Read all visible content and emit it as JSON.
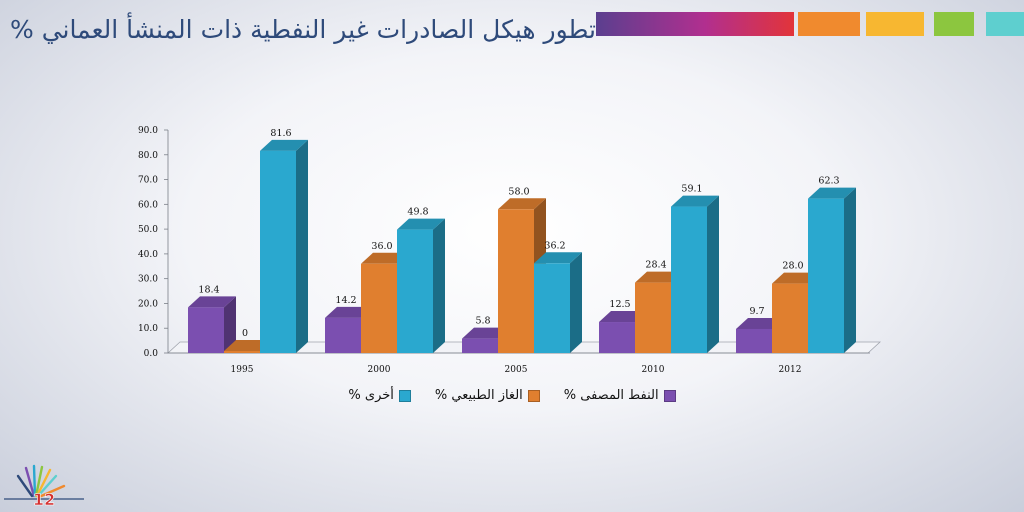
{
  "title": "تطور هيكل الصادرات غير النفطية ذات المنشأ العماني %",
  "header_colors": [
    "#5b3f8f",
    "#e2343a",
    "#f08a2e",
    "#f7b731",
    "#8cc63f",
    "#5ecfcf"
  ],
  "page_number": "12",
  "chart_data": {
    "type": "bar",
    "categories": [
      "1995",
      "2000",
      "2005",
      "2010",
      "2012"
    ],
    "series": [
      {
        "name": "النفط المصفى %",
        "color": "#7b4fb0",
        "values": [
          18.4,
          14.2,
          5.8,
          12.5,
          9.7
        ],
        "labels": [
          "18.4",
          "14.2",
          "5.8",
          "12.5",
          "9.7"
        ]
      },
      {
        "name": "الغاز الطبيعي %",
        "color": "#e07f2f",
        "values": [
          0,
          36.0,
          58.0,
          28.4,
          28.0
        ],
        "labels": [
          "0",
          "36.0",
          "58.0",
          "28.4",
          "28.0"
        ]
      },
      {
        "name": "أخرى %",
        "color": "#2aa8cf",
        "values": [
          81.6,
          49.8,
          36.2,
          59.1,
          62.3
        ],
        "labels": [
          "81.6",
          "49.8",
          "36.2",
          "59.1",
          "62.3"
        ]
      }
    ],
    "ylim": [
      0,
      90
    ],
    "yticks": [
      "0.0",
      "10.0",
      "20.0",
      "30.0",
      "40.0",
      "50.0",
      "60.0",
      "70.0",
      "80.0",
      "90.0"
    ],
    "legend_position": "bottom",
    "grid": false
  }
}
